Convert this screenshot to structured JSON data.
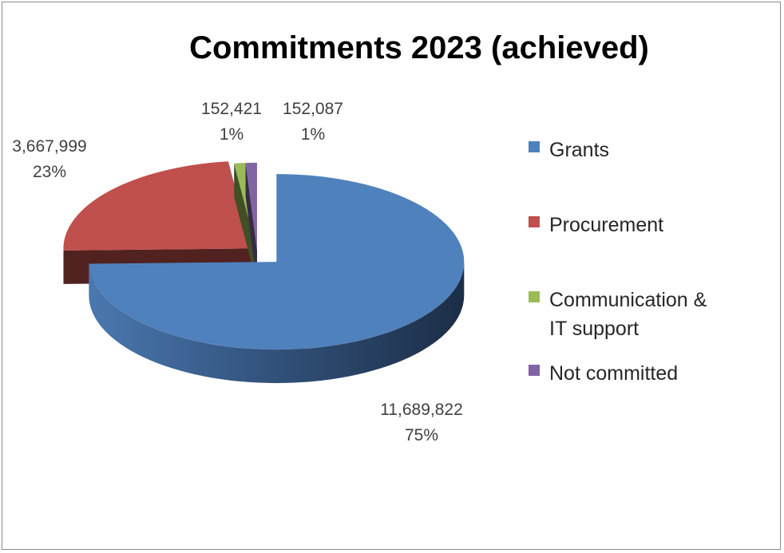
{
  "chart_data": {
    "type": "pie",
    "title": "Commitments 2023 (achieved)",
    "categories": [
      "Grants",
      "Procurement",
      "Communication & IT support",
      "Not committed"
    ],
    "values": [
      11689822,
      3667999,
      152421,
      152087
    ],
    "value_labels": [
      "11,689,822",
      "3,667,999",
      "152,421",
      "152,087"
    ],
    "percent_labels": [
      "75%",
      "23%",
      "1%",
      "1%"
    ],
    "colors": [
      "#4f81bd",
      "#c0504d",
      "#9bbb59",
      "#8064a2"
    ],
    "legend_lines": [
      [
        "Grants"
      ],
      [
        "Procurement"
      ],
      [
        "Communication &",
        "IT support"
      ],
      [
        "Not committed"
      ]
    ],
    "legend_position": "right",
    "style": "3d-exploded"
  }
}
